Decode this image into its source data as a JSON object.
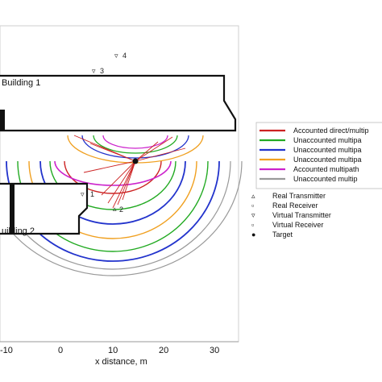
{
  "buildings": [
    {
      "name": "building-1",
      "label": "Building 1"
    },
    {
      "name": "building-2",
      "label": "uilding 2"
    }
  ],
  "annotations": {
    "marker_4": "4",
    "marker_3": "3",
    "marker_2": "2",
    "marker_1": "1"
  },
  "axis": {
    "xlabel": "x distance, m",
    "xticks": [
      "-10",
      "0",
      "10",
      "20",
      "30"
    ]
  },
  "legend": {
    "lines": [
      {
        "label": "Accounted direct/multip",
        "color": "#cc2222"
      },
      {
        "label": "Unaccounted multipa",
        "color": "#22aa22"
      },
      {
        "label": "Unaccounted multipa",
        "color": "#2233cc"
      },
      {
        "label": "Unaccounted multipa",
        "color": "#f0a020"
      },
      {
        "label": "Accounted multipath",
        "color": "#cc22cc"
      },
      {
        "label": "Unaccounted multip",
        "color": "#999999"
      }
    ],
    "markers": [
      {
        "label": "Real Transmitter",
        "icon": "triangle-icon"
      },
      {
        "label": "Real Receiver",
        "icon": "square-icon"
      },
      {
        "label": "Virtual Transmitter",
        "icon": "triangle-down-icon"
      },
      {
        "label": "Virtual Receiver",
        "icon": "square-icon"
      },
      {
        "label": "Target",
        "icon": "dot-icon"
      }
    ]
  }
}
